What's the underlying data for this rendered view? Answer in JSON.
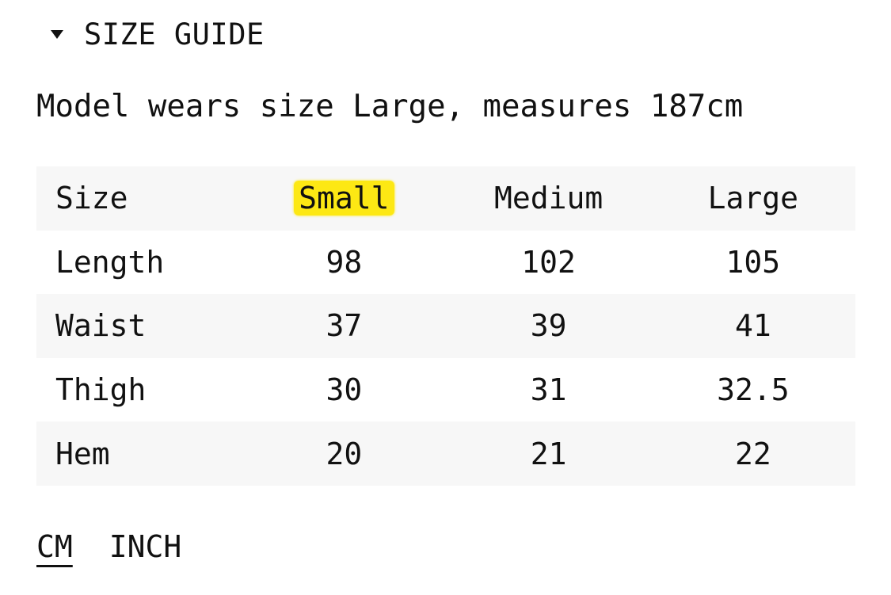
{
  "size_guide": {
    "title": "SIZE GUIDE",
    "expanded": true,
    "model_note": "Model wears size Large, measures 187cm",
    "highlight_color": "#fde814",
    "headers": [
      "Size",
      "Small",
      "Medium",
      "Large"
    ],
    "highlighted_header": "Small",
    "rows": [
      {
        "label": "Length",
        "values": [
          "98",
          "102",
          "105"
        ]
      },
      {
        "label": "Waist",
        "values": [
          "37",
          "39",
          "41"
        ]
      },
      {
        "label": "Thigh",
        "values": [
          "30",
          "31",
          "32.5"
        ]
      },
      {
        "label": "Hem",
        "values": [
          "20",
          "21",
          "22"
        ]
      }
    ],
    "units": [
      {
        "label": "CM",
        "active": true
      },
      {
        "label": "INCH",
        "active": false
      }
    ]
  }
}
